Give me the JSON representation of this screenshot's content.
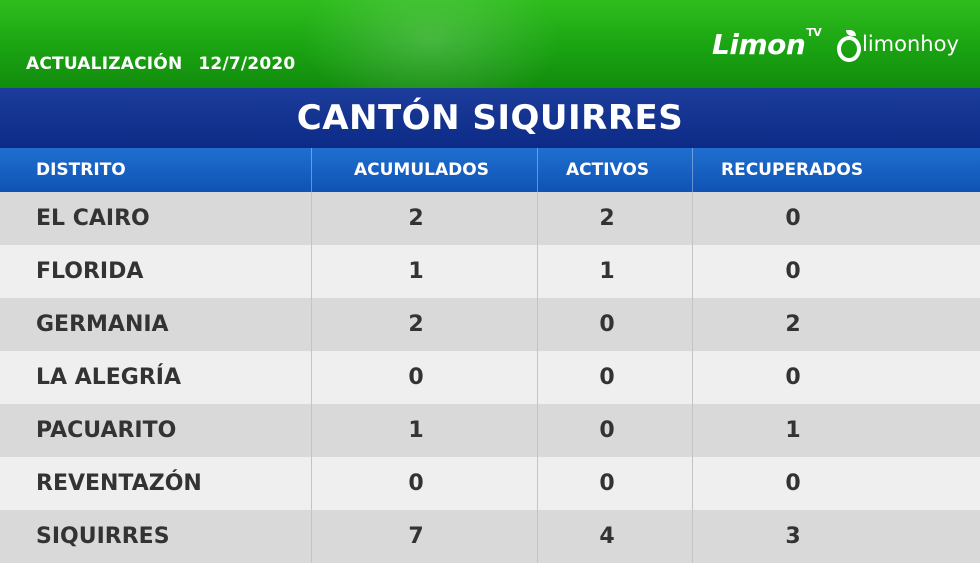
{
  "header": {
    "update_label": "ACTUALIZACIÓN",
    "update_date": "12/7/2020",
    "logo_limontv": "Limon",
    "logo_limontv_suffix": "TV",
    "logo_limonhoy": "limonhoy"
  },
  "title": "CANTÓN SIQUIRRES",
  "table": {
    "columns": [
      "DISTRITO",
      "ACUMULADOS",
      "ACTIVOS",
      "RECUPERADOS"
    ],
    "rows": [
      {
        "distrito": "EL CAIRO",
        "acumulados": "2",
        "activos": "2",
        "recuperados": "0"
      },
      {
        "distrito": "FLORIDA",
        "acumulados": "1",
        "activos": "1",
        "recuperados": "0"
      },
      {
        "distrito": "GERMANIA",
        "acumulados": "2",
        "activos": "0",
        "recuperados": "2"
      },
      {
        "distrito": "LA ALEGRÍA",
        "acumulados": "0",
        "activos": "0",
        "recuperados": "0"
      },
      {
        "distrito": "PACUARITO",
        "acumulados": "1",
        "activos": "0",
        "recuperados": "1"
      },
      {
        "distrito": "REVENTAZÓN",
        "acumulados": "0",
        "activos": "0",
        "recuperados": "0"
      },
      {
        "distrito": "SIQUIRRES",
        "acumulados": "7",
        "activos": "4",
        "recuperados": "3"
      }
    ]
  },
  "colors": {
    "banner_green": "#1aa312",
    "title_blue": "#0c2a86",
    "header_blue": "#1f6fd0",
    "row_dark": "#d9d9d9",
    "row_light": "#efefef",
    "text_dark": "#333333"
  }
}
